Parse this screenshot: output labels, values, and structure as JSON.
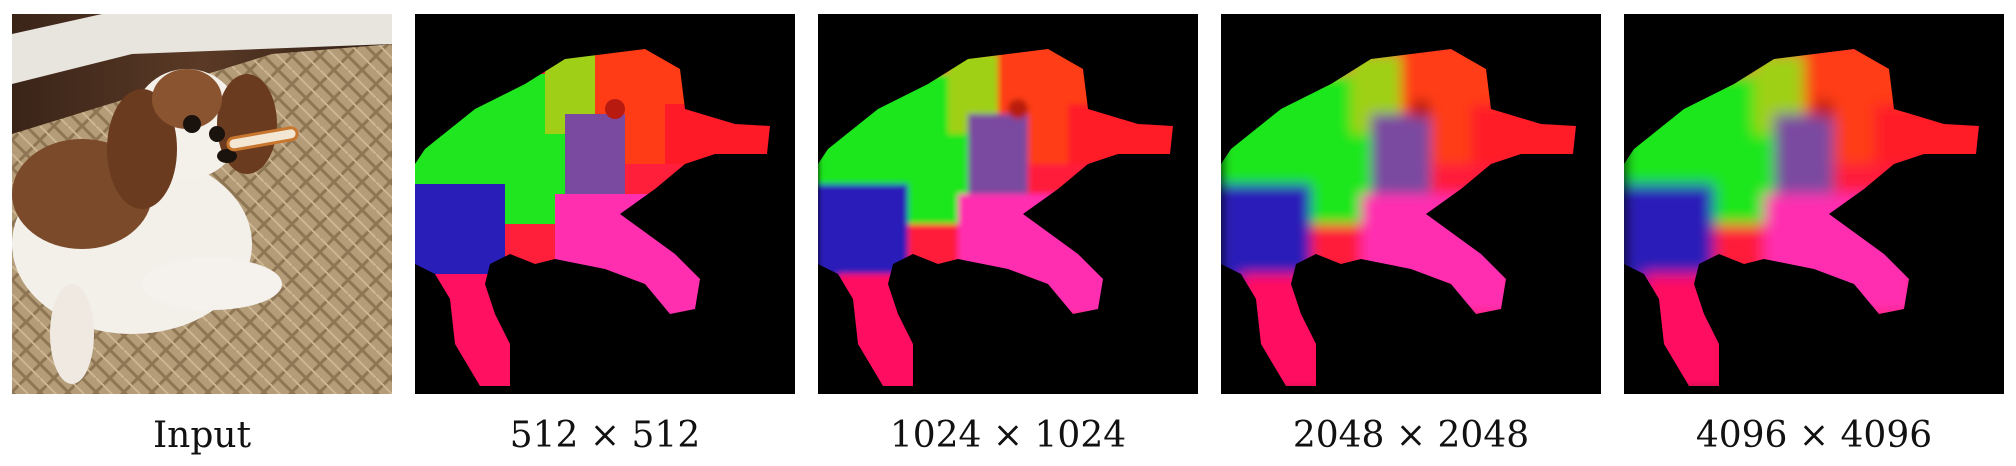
{
  "figure": {
    "panels": [
      {
        "caption": "Input",
        "kind": "photo"
      },
      {
        "caption": "512 × 512",
        "kind": "feature-map",
        "blur": 0
      },
      {
        "caption": "1024 × 1024",
        "kind": "feature-map",
        "blur": 3
      },
      {
        "caption": "2048 × 2048",
        "kind": "feature-map",
        "blur": 6
      },
      {
        "caption": "4096 × 4096",
        "kind": "feature-map",
        "blur": 7
      }
    ]
  }
}
